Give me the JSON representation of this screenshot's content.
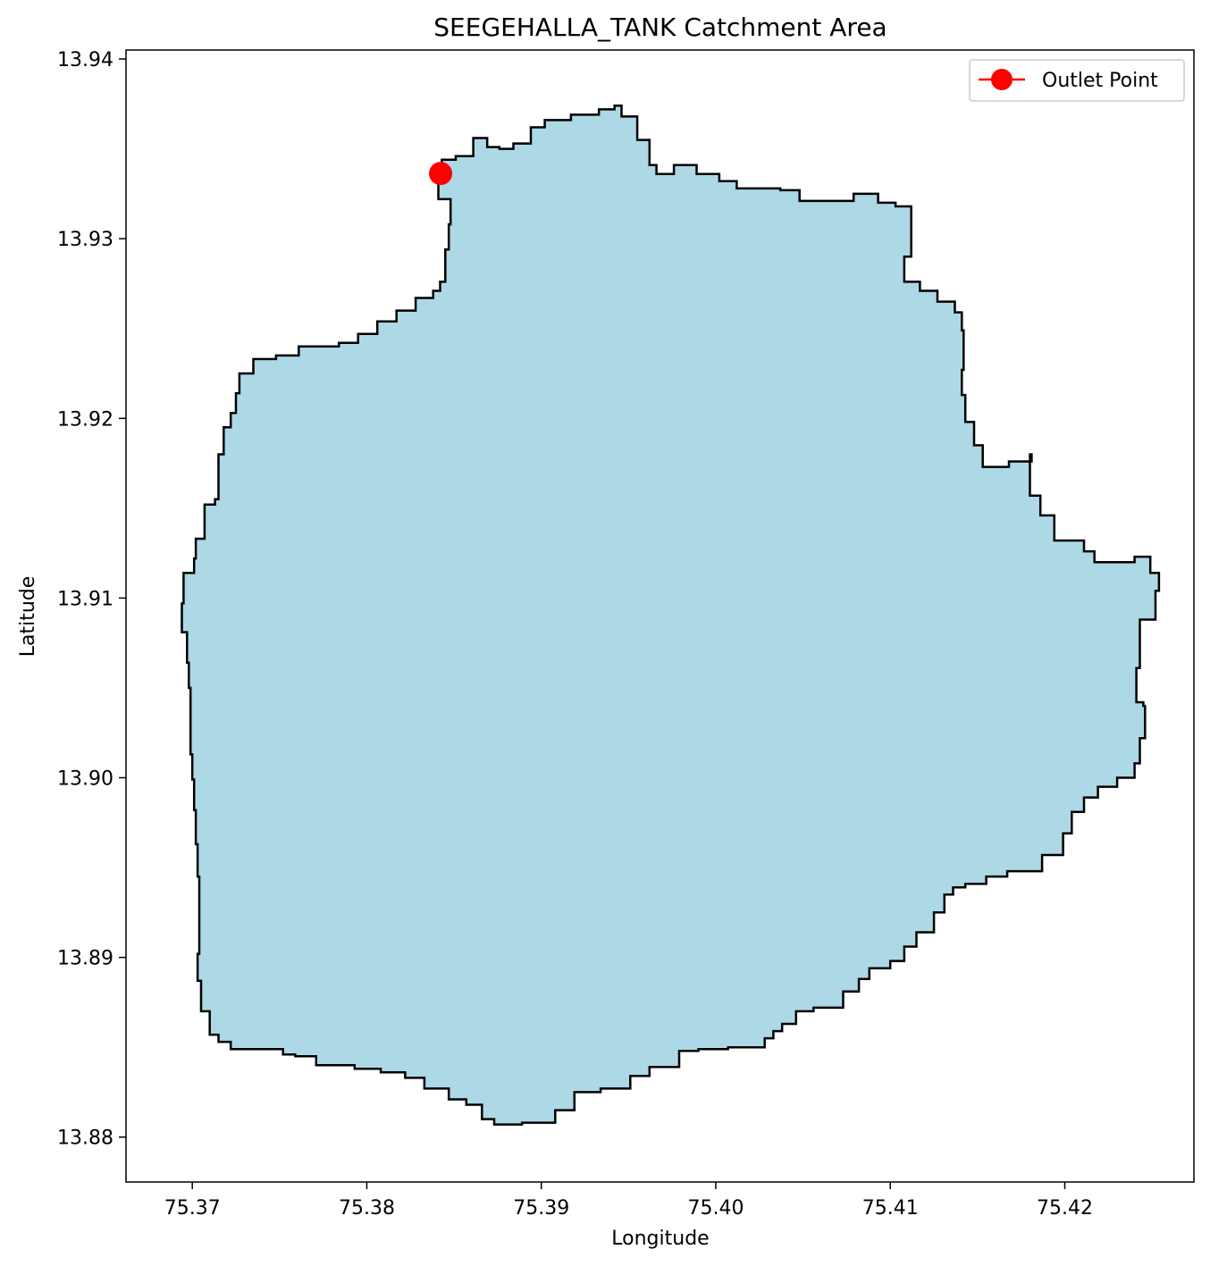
{
  "chart_data": {
    "type": "map",
    "title": "SEEGEHALLA_TANK Catchment Area",
    "xlabel": "Longitude",
    "ylabel": "Latitude",
    "xlim": [
      75.3662,
      75.4274
    ],
    "ylim": [
      13.8775,
      13.9405
    ],
    "xticks": [
      {
        "value": 75.37,
        "label": "75.37"
      },
      {
        "value": 75.38,
        "label": "75.38"
      },
      {
        "value": 75.39,
        "label": "75.39"
      },
      {
        "value": 75.4,
        "label": "75.40"
      },
      {
        "value": 75.41,
        "label": "75.41"
      },
      {
        "value": 75.42,
        "label": "75.42"
      }
    ],
    "yticks": [
      {
        "value": 13.88,
        "label": "13.88"
      },
      {
        "value": 13.89,
        "label": "13.89"
      },
      {
        "value": 13.9,
        "label": "13.90"
      },
      {
        "value": 13.91,
        "label": "13.91"
      },
      {
        "value": 13.92,
        "label": "13.92"
      },
      {
        "value": 13.93,
        "label": "13.93"
      },
      {
        "value": 13.94,
        "label": "13.94"
      }
    ],
    "grid": false,
    "legend": {
      "placement": "top-right",
      "entries": [
        "Outlet Point"
      ]
    },
    "catchment": {
      "fill": "#add8e6",
      "edge": "#000000",
      "boundary": [
        [
          75.3841,
          13.9333
        ],
        [
          75.3843,
          13.9344
        ],
        [
          75.3851,
          13.9346
        ],
        [
          75.3861,
          13.9356
        ],
        [
          75.3869,
          13.9351
        ],
        [
          75.3876,
          13.935
        ],
        [
          75.3884,
          13.9353
        ],
        [
          75.3894,
          13.9362
        ],
        [
          75.3902,
          13.9366
        ],
        [
          75.3917,
          13.9369
        ],
        [
          75.3933,
          13.9372
        ],
        [
          75.3942,
          13.9374
        ],
        [
          75.3946,
          13.9368
        ],
        [
          75.3955,
          13.9355
        ],
        [
          75.3962,
          13.9341
        ],
        [
          75.3966,
          13.9336
        ],
        [
          75.3976,
          13.9341
        ],
        [
          75.3989,
          13.9336
        ],
        [
          75.4002,
          13.9332
        ],
        [
          75.4012,
          13.9328
        ],
        [
          75.4037,
          13.9327
        ],
        [
          75.4048,
          13.9321
        ],
        [
          75.4061,
          13.9321
        ],
        [
          75.4079,
          13.9325
        ],
        [
          75.4093,
          13.932
        ],
        [
          75.4103,
          13.9318
        ],
        [
          75.4112,
          13.9314
        ],
        [
          75.4112,
          13.929
        ],
        [
          75.4108,
          13.9276
        ],
        [
          75.4117,
          13.9271
        ],
        [
          75.4127,
          13.9265
        ],
        [
          75.4137,
          13.9259
        ],
        [
          75.4141,
          13.9249
        ],
        [
          75.4142,
          13.9227
        ],
        [
          75.4141,
          13.9213
        ],
        [
          75.4143,
          13.9198
        ],
        [
          75.4148,
          13.9185
        ],
        [
          75.4153,
          13.9173
        ],
        [
          75.4168,
          13.9176
        ],
        [
          75.4181,
          13.918
        ],
        [
          75.418,
          13.9157
        ],
        [
          75.4186,
          13.9146
        ],
        [
          75.4194,
          13.9132
        ],
        [
          75.4211,
          13.9126
        ],
        [
          75.4217,
          13.912
        ],
        [
          75.424,
          13.9123
        ],
        [
          75.4249,
          13.9114
        ],
        [
          75.4254,
          13.9104
        ],
        [
          75.4252,
          13.9088
        ],
        [
          75.4243,
          13.9085
        ],
        [
          75.4243,
          13.9061
        ],
        [
          75.4241,
          13.9042
        ],
        [
          75.4245,
          13.904
        ],
        [
          75.4246,
          13.9022
        ],
        [
          75.4243,
          13.9008
        ],
        [
          75.424,
          13.9
        ],
        [
          75.423,
          13.8995
        ],
        [
          75.4219,
          13.8989
        ],
        [
          75.4211,
          13.8981
        ],
        [
          75.4204,
          13.8969
        ],
        [
          75.4199,
          13.8957
        ],
        [
          75.4187,
          13.8948
        ],
        [
          75.4167,
          13.8945
        ],
        [
          75.4155,
          13.8941
        ],
        [
          75.4143,
          13.8939
        ],
        [
          75.4136,
          13.8935
        ],
        [
          75.4131,
          13.8925
        ],
        [
          75.4125,
          13.8914
        ],
        [
          75.4115,
          13.8906
        ],
        [
          75.4108,
          13.8898
        ],
        [
          75.41,
          13.8894
        ],
        [
          75.4088,
          13.8888
        ],
        [
          75.4082,
          13.8881
        ],
        [
          75.4073,
          13.8872
        ],
        [
          75.4056,
          13.887
        ],
        [
          75.4046,
          13.8863
        ],
        [
          75.4038,
          13.8859
        ],
        [
          75.4033,
          13.8855
        ],
        [
          75.4028,
          13.885
        ],
        [
          75.4007,
          13.8849
        ],
        [
          75.399,
          13.8848
        ],
        [
          75.3979,
          13.8839
        ],
        [
          75.3962,
          13.8834
        ],
        [
          75.3951,
          13.8827
        ],
        [
          75.3934,
          13.8825
        ],
        [
          75.3919,
          13.8815
        ],
        [
          75.3908,
          13.8808
        ],
        [
          75.3889,
          13.8807
        ],
        [
          75.3873,
          13.881
        ],
        [
          75.3866,
          13.8818
        ],
        [
          75.3857,
          13.8821
        ],
        [
          75.3847,
          13.8827
        ],
        [
          75.3833,
          13.8833
        ],
        [
          75.3822,
          13.8836
        ],
        [
          75.3808,
          13.8838
        ],
        [
          75.3793,
          13.884
        ],
        [
          75.3781,
          13.884
        ],
        [
          75.3771,
          13.8845
        ],
        [
          75.3759,
          13.8846
        ],
        [
          75.3752,
          13.8849
        ],
        [
          75.3733,
          13.8849
        ],
        [
          75.3722,
          13.8853
        ],
        [
          75.3715,
          13.8857
        ],
        [
          75.371,
          13.887
        ],
        [
          75.3705,
          13.8887
        ],
        [
          75.3703,
          13.8902
        ],
        [
          75.3704,
          13.8921
        ],
        [
          75.3704,
          13.8945
        ],
        [
          75.3703,
          13.8963
        ],
        [
          75.3702,
          13.8982
        ],
        [
          75.3701,
          13.8999
        ],
        [
          75.37,
          13.9013
        ],
        [
          75.3699,
          13.9032
        ],
        [
          75.3699,
          13.905
        ],
        [
          75.3698,
          13.9064
        ],
        [
          75.3697,
          13.9081
        ],
        [
          75.3694,
          13.9097
        ],
        [
          75.3695,
          13.9114
        ],
        [
          75.3701,
          13.9122
        ],
        [
          75.3702,
          13.9133
        ],
        [
          75.3707,
          13.9152
        ],
        [
          75.3713,
          13.9155
        ],
        [
          75.3715,
          13.9163
        ],
        [
          75.3715,
          13.918
        ],
        [
          75.3718,
          13.9195
        ],
        [
          75.3722,
          13.9203
        ],
        [
          75.3725,
          13.9214
        ],
        [
          75.3727,
          13.9225
        ],
        [
          75.3735,
          13.9233
        ],
        [
          75.3748,
          13.9235
        ],
        [
          75.3761,
          13.924
        ],
        [
          75.3784,
          13.9242
        ],
        [
          75.3795,
          13.9247
        ],
        [
          75.3806,
          13.9254
        ],
        [
          75.3817,
          13.926
        ],
        [
          75.3828,
          13.9267
        ],
        [
          75.3838,
          13.9271
        ],
        [
          75.3842,
          13.9276
        ],
        [
          75.3845,
          13.9294
        ],
        [
          75.3847,
          13.9308
        ],
        [
          75.3848,
          13.9322
        ]
      ]
    },
    "outlet_point": {
      "lon": 75.38423,
      "lat": 13.93363,
      "color": "#ff0000",
      "label": "Outlet Point"
    }
  }
}
